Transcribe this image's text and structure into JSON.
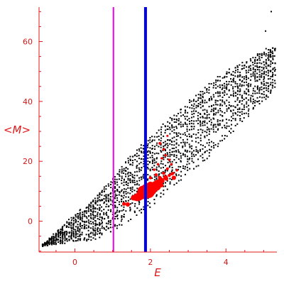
{
  "chart_data": {
    "type": "scatter",
    "xlabel": "E",
    "ylabel": "<M>",
    "xlim": [
      -0.95,
      5.35
    ],
    "ylim": [
      -10.3,
      71.5
    ],
    "xticks": [
      "0",
      "2",
      "4"
    ],
    "yticks": [
      "0",
      "20",
      "40",
      "60"
    ],
    "grid": false,
    "axis_color": "#e01818",
    "vertical_lines": [
      {
        "x": 1.02,
        "color": "#ee00ee",
        "width": "thin"
      },
      {
        "x": 1.87,
        "color": "#0000ee",
        "width": "thick"
      }
    ],
    "series": [
      {
        "color": "#000000",
        "marker": "dot",
        "band": {
          "upper": [
            [
              -0.85,
              -8
            ],
            [
              0,
              2
            ],
            [
              0.5,
              7.5
            ],
            [
              1,
              14
            ],
            [
              1.5,
              22
            ],
            [
              2,
              28
            ],
            [
              2.5,
              34
            ],
            [
              3,
              40
            ],
            [
              3.5,
              45
            ],
            [
              4,
              50
            ],
            [
              4.5,
              53
            ],
            [
              5,
              57
            ],
            [
              5.3,
              58
            ]
          ],
          "lower": [
            [
              -0.85,
              -8
            ],
            [
              0,
              -7
            ],
            [
              0.5,
              -6
            ],
            [
              1,
              -3
            ],
            [
              1.5,
              1
            ],
            [
              2,
              5
            ],
            [
              2.5,
              11
            ],
            [
              3,
              16
            ],
            [
              3.5,
              21
            ],
            [
              4,
              28
            ],
            [
              4.5,
              34
            ],
            [
              5,
              40
            ],
            [
              5.3,
              44
            ]
          ]
        },
        "outliers": [
          [
            5.2,
            70
          ],
          [
            5.05,
            63.5
          ]
        ]
      },
      {
        "color": "#ff0000",
        "marker": "disc",
        "points": [
          [
            1.85,
            9.5,
            4
          ],
          [
            1.95,
            9.8,
            4
          ],
          [
            1.8,
            10,
            3.5
          ],
          [
            1.9,
            10.5,
            3.8
          ],
          [
            2.0,
            11.2,
            3.5
          ],
          [
            1.75,
            8.8,
            3
          ],
          [
            2.05,
            10.6,
            3
          ],
          [
            1.7,
            8.2,
            2.6
          ],
          [
            2.15,
            11.8,
            3.2
          ],
          [
            2.2,
            12.6,
            2.6
          ],
          [
            1.65,
            8.0,
            2.5
          ],
          [
            1.6,
            7.9,
            2
          ],
          [
            1.55,
            7.8,
            1.7
          ],
          [
            2.3,
            13.5,
            1.8
          ],
          [
            2.4,
            14.6,
            1.5
          ],
          [
            2.0,
            12.2,
            2
          ],
          [
            1.9,
            11.5,
            2.2
          ],
          [
            2.25,
            14.5,
            1.2
          ],
          [
            2.35,
            16,
            1
          ],
          [
            2.45,
            17.5,
            0.9
          ],
          [
            2.2,
            19,
            0.8
          ],
          [
            2.3,
            21,
            0.8
          ],
          [
            2.4,
            22,
            0.8
          ],
          [
            2.55,
            19,
            0.8
          ],
          [
            2.5,
            20.5,
            0.8
          ],
          [
            2.35,
            24,
            0.8
          ],
          [
            2.25,
            26,
            0.9
          ],
          [
            2.45,
            28.5,
            0.7
          ],
          [
            2.6,
            16,
            0.9
          ],
          [
            2.7,
            17,
            0.8
          ],
          [
            2.15,
            15.5,
            1
          ],
          [
            2.1,
            17.2,
            0.8
          ],
          [
            2.0,
            14.5,
            1
          ],
          [
            1.3,
            5.8,
            1.2
          ],
          [
            1.4,
            5.6,
            1.4
          ],
          [
            2.62,
            14.5,
            1.4
          ],
          [
            2.5,
            15.3,
            1
          ],
          [
            2.3,
            12,
            1.2
          ],
          [
            2.42,
            14.2,
            1.3
          ],
          [
            2.57,
            15.8,
            1
          ]
        ]
      }
    ]
  }
}
